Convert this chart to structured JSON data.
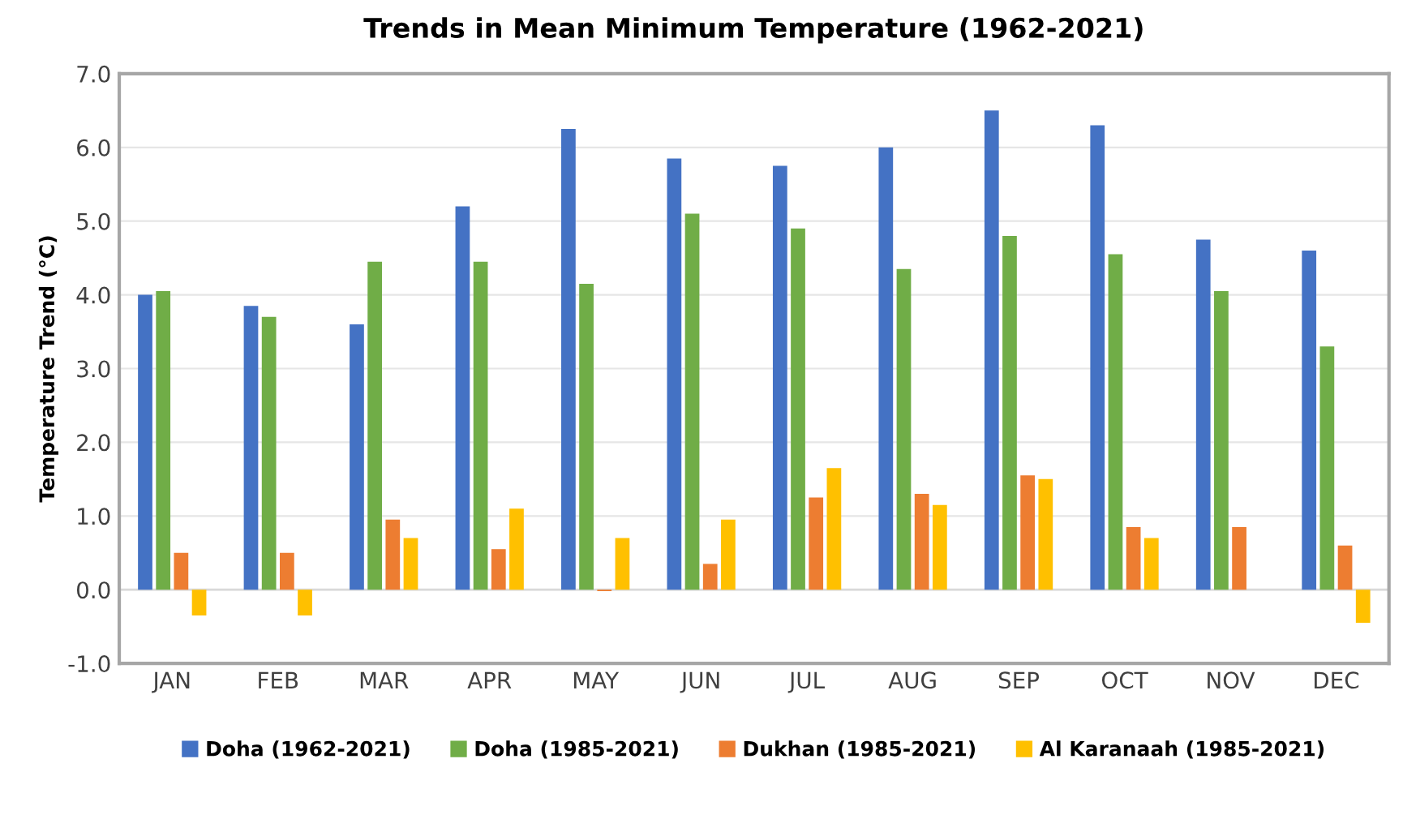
{
  "chart_data": {
    "type": "bar",
    "title": "Trends in Mean Minimum Temperature (1962-2021)",
    "ylabel": "Temperature Trend (°C)",
    "categories": [
      "JAN",
      "FEB",
      "MAR",
      "APR",
      "MAY",
      "JUN",
      "JUL",
      "AUG",
      "SEP",
      "OCT",
      "NOV",
      "DEC"
    ],
    "series": [
      {
        "name": "Doha (1962-2021)",
        "color": "#4472c4",
        "values": [
          4.0,
          3.85,
          3.6,
          5.2,
          6.25,
          5.85,
          5.75,
          6.0,
          6.5,
          6.3,
          4.75,
          4.6
        ]
      },
      {
        "name": "Doha (1985-2021)",
        "color": "#70ad47",
        "values": [
          4.05,
          3.7,
          4.45,
          4.45,
          4.15,
          5.1,
          4.9,
          4.35,
          4.8,
          4.55,
          4.05,
          3.3
        ]
      },
      {
        "name": "Dukhan (1985-2021)",
        "color": "#ed7d31",
        "values": [
          0.5,
          0.5,
          0.95,
          0.55,
          -0.02,
          0.35,
          1.25,
          1.3,
          1.55,
          0.85,
          0.85,
          0.6
        ]
      },
      {
        "name": "Al Karanaah (1985-2021)",
        "color": "#ffc000",
        "values": [
          -0.35,
          -0.35,
          0.7,
          1.1,
          0.7,
          0.95,
          1.65,
          1.15,
          1.5,
          0.7,
          0.0,
          -0.45
        ]
      }
    ],
    "ylim": [
      -1.0,
      7.0
    ],
    "yticks": [
      {
        "value": -1,
        "label": "-1.0"
      },
      {
        "value": 0,
        "label": "0.0"
      },
      {
        "value": 1,
        "label": "1.0"
      },
      {
        "value": 2,
        "label": "2.0"
      },
      {
        "value": 3,
        "label": "3.0"
      },
      {
        "value": 4,
        "label": "4.0"
      },
      {
        "value": 5,
        "label": "5.0"
      },
      {
        "value": 6,
        "label": "6.0"
      },
      {
        "value": 7,
        "label": "7.0"
      }
    ],
    "grid": "y",
    "legend": "bottom"
  }
}
